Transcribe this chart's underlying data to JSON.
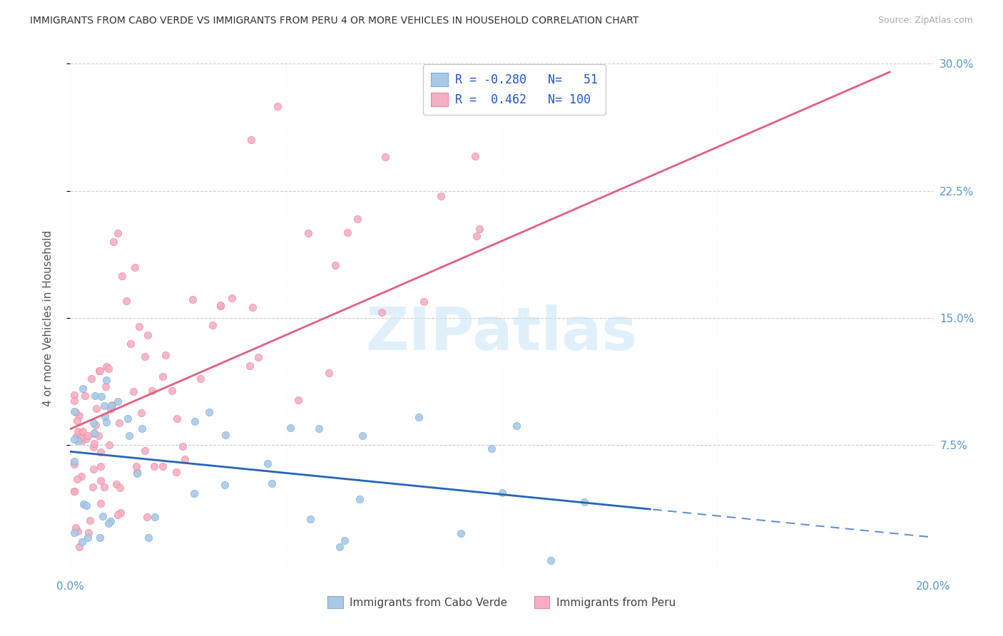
{
  "title": "IMMIGRANTS FROM CABO VERDE VS IMMIGRANTS FROM PERU 4 OR MORE VEHICLES IN HOUSEHOLD CORRELATION CHART",
  "source": "Source: ZipAtlas.com",
  "ylabel": "4 or more Vehicles in Household",
  "xlim": [
    0.0,
    0.2
  ],
  "ylim": [
    0.0,
    0.3
  ],
  "cabo_verde_color": "#aac9e8",
  "cabo_verde_edge_color": "#7aaed4",
  "peru_color": "#f5afc0",
  "peru_edge_color": "#e888a0",
  "cabo_verde_line_color": "#2266bb",
  "cabo_verde_line_dash": [
    6,
    4
  ],
  "peru_line_color": "#e06080",
  "cabo_verde_R": -0.28,
  "cabo_verde_N": 51,
  "peru_R": 0.462,
  "peru_N": 100,
  "watermark": "ZIPatlas",
  "legend_cabo_verde": "Immigrants from Cabo Verde",
  "legend_peru": "Immigrants from Peru",
  "legend_R_color": "#2255cc",
  "legend_N_color": "#2255cc",
  "grid_color": "#cccccc",
  "tick_color": "#5599cc",
  "ylabel_color": "#555555",
  "title_color": "#333333",
  "source_color": "#aaaaaa",
  "yticks": [
    0.075,
    0.15,
    0.225,
    0.3
  ],
  "xticks": [
    0.0,
    0.05,
    0.1,
    0.15,
    0.2
  ]
}
